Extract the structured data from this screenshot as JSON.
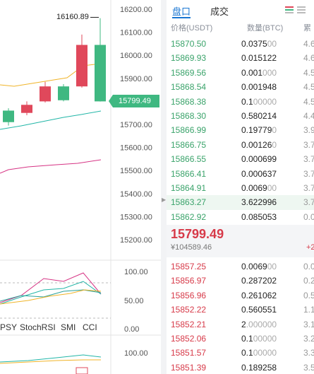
{
  "chart": {
    "price_axis": [
      "16200.00",
      "16100.00",
      "16000.00",
      "15900.00",
      "15800.00",
      "15700.00",
      "15600.00",
      "15500.00",
      "15400.00",
      "15300.00",
      "15200.00"
    ],
    "high_label": "16160.89",
    "current_price_tag": "15799.49",
    "indicator_axis": [
      "100.00",
      "50.00",
      "0.00"
    ],
    "second_indicator_axis": [
      "100.00"
    ],
    "indicator_tabs": [
      "PSY",
      "StochRSI",
      "SMI",
      "CCI"
    ],
    "candles": [
      {
        "open": 15710,
        "close": 15760,
        "high": 15770,
        "low": 15695,
        "dir": "down"
      },
      {
        "open": 15750,
        "close": 15785,
        "high": 15800,
        "low": 15740,
        "dir": "up-red"
      },
      {
        "open": 15800,
        "close": 15865,
        "high": 15885,
        "low": 15795,
        "dir": "up-red"
      },
      {
        "open": 15805,
        "close": 15865,
        "high": 15875,
        "low": 15800,
        "dir": "green"
      },
      {
        "open": 15865,
        "close": 16045,
        "high": 16090,
        "low": 15860,
        "dir": "up-red"
      },
      {
        "open": 15800,
        "close": 16045,
        "high": 16160.89,
        "low": 15799.49,
        "dir": "green"
      }
    ],
    "colors": {
      "up": "#e0485b",
      "down": "#3fb881",
      "ma_yellow": "#f0b429",
      "ma_teal": "#22b6a7",
      "ma_pink": "#d63384"
    }
  },
  "orderbook": {
    "tabs": {
      "book": "盘口",
      "trades": "成交"
    },
    "headers": {
      "price": "价格(USDT)",
      "qty": "数量(BTC)",
      "total": "累"
    },
    "asks": [
      {
        "price": "15870.50",
        "qty": "0.0375",
        "qty_dim": "00",
        "total": "4.6"
      },
      {
        "price": "15869.93",
        "qty": "0.015122",
        "qty_dim": "",
        "total": "4.6"
      },
      {
        "price": "15869.56",
        "qty": "0.001",
        "qty_dim": "000",
        "total": "4.5"
      },
      {
        "price": "15868.54",
        "qty": "0.001948",
        "qty_dim": "",
        "total": "4.5"
      },
      {
        "price": "15868.38",
        "qty": "0.1",
        "qty_dim": "00000",
        "total": "4.5"
      },
      {
        "price": "15868.30",
        "qty": "0.580214",
        "qty_dim": "",
        "total": "4.4"
      },
      {
        "price": "15866.99",
        "qty": "0.19779",
        "qty_dim": "0",
        "total": "3.9"
      },
      {
        "price": "15866.75",
        "qty": "0.00126",
        "qty_dim": "0",
        "total": "3.7"
      },
      {
        "price": "15866.55",
        "qty": "0.000699",
        "qty_dim": "",
        "total": "3.7"
      },
      {
        "price": "15866.41",
        "qty": "0.000637",
        "qty_dim": "",
        "total": "3.7"
      },
      {
        "price": "15864.91",
        "qty": "0.0069",
        "qty_dim": "00",
        "total": "3.7"
      },
      {
        "price": "15863.27",
        "qty": "3.622996",
        "qty_dim": "",
        "total": "3.7"
      },
      {
        "price": "15862.92",
        "qty": "0.085053",
        "qty_dim": "",
        "total": "0.0"
      }
    ],
    "last_price": "15799.49",
    "last_fiat": "¥104589.46",
    "change": "+2",
    "bids": [
      {
        "price": "15857.25",
        "qty": "0.0069",
        "qty_dim": "00",
        "total": "0.0"
      },
      {
        "price": "15856.97",
        "qty": "0.287202",
        "qty_dim": "",
        "total": "0.2"
      },
      {
        "price": "15856.96",
        "qty": "0.261062",
        "qty_dim": "",
        "total": "0.5"
      },
      {
        "price": "15852.22",
        "qty": "0.560551",
        "qty_dim": "",
        "total": "1.1"
      },
      {
        "price": "15852.21",
        "qty": "2",
        "qty_dim": ".000000",
        "total": "3.1"
      },
      {
        "price": "15852.06",
        "qty": "0.1",
        "qty_dim": "00000",
        "total": "3.2"
      },
      {
        "price": "15851.57",
        "qty": "0.1",
        "qty_dim": "00000",
        "total": "3.3"
      },
      {
        "price": "15851.39",
        "qty": "0.189258",
        "qty_dim": "",
        "total": "3.5"
      }
    ],
    "colors": {
      "ask": "#3aa36a",
      "bid": "#d73a49",
      "accent": "#1976d2"
    }
  }
}
